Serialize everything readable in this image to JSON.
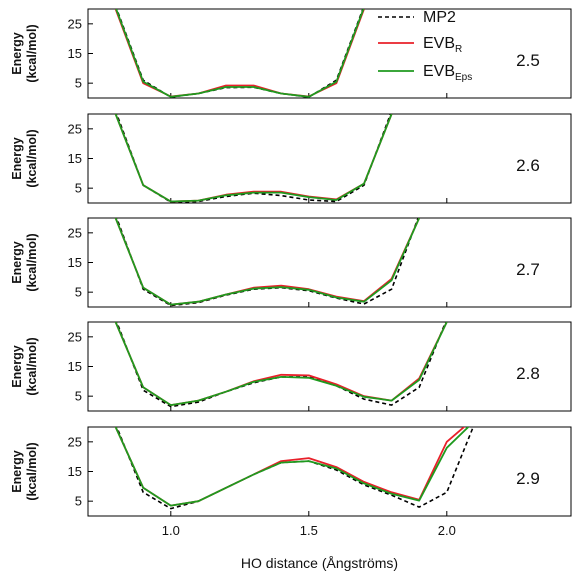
{
  "chart_data": {
    "type": "line",
    "xlabel": "HO distance (Ångströms)",
    "ylabel": "Energy\n(kcal/mol)",
    "xlim": [
      0.7,
      2.45
    ],
    "ylim": [
      0,
      30
    ],
    "x_ticks": [
      "1.0",
      "1.5",
      "2.0"
    ],
    "y_ticks": [
      "25",
      "15",
      "5"
    ],
    "legend": {
      "position": "top-right",
      "entries": [
        {
          "label": "MP2",
          "style": "dashed",
          "color": "#000000"
        },
        {
          "label": "EVB",
          "sub": "R",
          "style": "solid",
          "color": "#e8202a"
        },
        {
          "label": "EVB",
          "sub": "Eps",
          "style": "solid",
          "color": "#1f9a1f"
        }
      ]
    },
    "panels": [
      {
        "label": "2.5",
        "series": [
          {
            "name": "MP2",
            "x": [
              0.8,
              0.9,
              1.0,
              1.1,
              1.2,
              1.3,
              1.4,
              1.5,
              1.6,
              1.7
            ],
            "y": [
              31,
              6,
              0.3,
              1.5,
              3.5,
              3.6,
              1.5,
              0.3,
              6,
              31
            ]
          },
          {
            "name": "EVB_R",
            "x": [
              0.8,
              0.9,
              1.0,
              1.1,
              1.2,
              1.3,
              1.4,
              1.5,
              1.6,
              1.7
            ],
            "y": [
              30,
              5,
              0.5,
              1.5,
              4.2,
              4.2,
              1.5,
              0.5,
              5,
              30
            ]
          },
          {
            "name": "EVB_Eps",
            "x": [
              0.8,
              0.9,
              1.0,
              1.1,
              1.2,
              1.3,
              1.4,
              1.5,
              1.6,
              1.7
            ],
            "y": [
              30.5,
              5.5,
              0.4,
              1.5,
              3.7,
              3.7,
              1.5,
              0.4,
              5.5,
              30.5
            ]
          }
        ]
      },
      {
        "label": "2.6",
        "series": [
          {
            "name": "MP2",
            "x": [
              0.8,
              0.9,
              1.0,
              1.1,
              1.2,
              1.3,
              1.4,
              1.5,
              1.6,
              1.7,
              1.8
            ],
            "y": [
              31,
              6,
              0.3,
              0.5,
              2.2,
              3.3,
              2.5,
              1,
              0.5,
              6,
              31
            ]
          },
          {
            "name": "EVB_R",
            "x": [
              0.8,
              0.9,
              1.0,
              1.1,
              1.2,
              1.3,
              1.4,
              1.5,
              1.6,
              1.7,
              1.8
            ],
            "y": [
              30,
              6,
              0.5,
              0.8,
              2.8,
              3.8,
              3.8,
              2.2,
              1.2,
              6.5,
              30
            ]
          },
          {
            "name": "EVB_Eps",
            "x": [
              0.8,
              0.9,
              1.0,
              1.1,
              1.2,
              1.3,
              1.4,
              1.5,
              1.6,
              1.7,
              1.8
            ],
            "y": [
              30,
              6,
              0.5,
              0.8,
              2.6,
              3.5,
              3.5,
              2,
              1,
              6.5,
              30
            ]
          }
        ]
      },
      {
        "label": "2.7",
        "series": [
          {
            "name": "MP2",
            "x": [
              0.8,
              0.9,
              1.0,
              1.1,
              1.2,
              1.3,
              1.4,
              1.5,
              1.6,
              1.7,
              1.8,
              1.9
            ],
            "y": [
              31,
              6,
              0.5,
              1.5,
              4,
              6,
              6.5,
              5.5,
              3,
              1,
              6,
              31
            ]
          },
          {
            "name": "EVB_R",
            "x": [
              0.8,
              0.9,
              1.0,
              1.1,
              1.2,
              1.3,
              1.4,
              1.5,
              1.6,
              1.7,
              1.8,
              1.9
            ],
            "y": [
              30,
              6.5,
              0.8,
              1.8,
              4.2,
              6.5,
              7.2,
              6,
              3.5,
              2,
              9.5,
              30
            ]
          },
          {
            "name": "EVB_Eps",
            "x": [
              0.8,
              0.9,
              1.0,
              1.1,
              1.2,
              1.3,
              1.4,
              1.5,
              1.6,
              1.7,
              1.8,
              1.9
            ],
            "y": [
              30,
              6.5,
              0.8,
              1.8,
              4.2,
              6.2,
              6.7,
              5.8,
              3.2,
              1.8,
              9,
              30
            ]
          }
        ]
      },
      {
        "label": "2.8",
        "series": [
          {
            "name": "MP2",
            "x": [
              0.8,
              0.9,
              1.0,
              1.1,
              1.2,
              1.3,
              1.4,
              1.5,
              1.6,
              1.7,
              1.8,
              1.9,
              2.0
            ],
            "y": [
              31,
              7,
              1.5,
              3,
              6.5,
              9.5,
              11.5,
              11.5,
              8.5,
              4,
              2,
              8,
              31
            ]
          },
          {
            "name": "EVB_R",
            "x": [
              0.8,
              0.9,
              1.0,
              1.1,
              1.2,
              1.3,
              1.4,
              1.5,
              1.6,
              1.7,
              1.8,
              1.9,
              2.0
            ],
            "y": [
              30,
              8,
              2,
              3.5,
              6.5,
              10,
              12.2,
              12,
              9,
              5,
              3.5,
              11,
              30
            ]
          },
          {
            "name": "EVB_Eps",
            "x": [
              0.8,
              0.9,
              1.0,
              1.1,
              1.2,
              1.3,
              1.4,
              1.5,
              1.6,
              1.7,
              1.8,
              1.9,
              2.0
            ],
            "y": [
              30,
              8,
              2,
              3.5,
              6.5,
              9.8,
              11.5,
              11.2,
              8.5,
              4.8,
              3.5,
              10.5,
              30
            ]
          }
        ]
      },
      {
        "label": "2.9",
        "series": [
          {
            "name": "MP2",
            "x": [
              0.8,
              0.9,
              1.0,
              1.1,
              1.2,
              1.3,
              1.4,
              1.5,
              1.6,
              1.7,
              1.8,
              1.9,
              2.0,
              2.1
            ],
            "y": [
              31,
              8,
              2.5,
              5,
              9.5,
              14,
              18,
              18.5,
              15.5,
              10.5,
              7,
              3,
              8,
              31
            ]
          },
          {
            "name": "EVB_R",
            "x": [
              0.8,
              0.9,
              1.0,
              1.1,
              1.2,
              1.3,
              1.4,
              1.5,
              1.6,
              1.7,
              1.8,
              1.9,
              2.0,
              2.1
            ],
            "y": [
              30,
              9.5,
              3.5,
              5,
              9.5,
              14,
              18.5,
              19.5,
              16.5,
              11.5,
              8,
              5.5,
              25,
              33
            ]
          },
          {
            "name": "EVB_Eps",
            "x": [
              0.8,
              0.9,
              1.0,
              1.1,
              1.2,
              1.3,
              1.4,
              1.5,
              1.6,
              1.7,
              1.8,
              1.9,
              2.0,
              2.1
            ],
            "y": [
              30,
              9.5,
              3.5,
              5,
              9.5,
              14,
              18,
              18.5,
              16,
              11,
              7.5,
              5.2,
              23,
              32
            ]
          }
        ]
      }
    ]
  }
}
